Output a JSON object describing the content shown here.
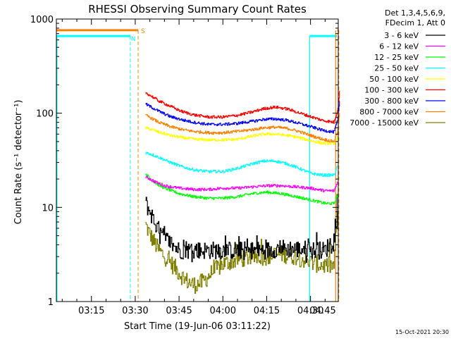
{
  "chart_data": {
    "type": "line",
    "title": "RHESSI Observing Summary Count Rates",
    "xlabel": "Start Time (19-Jun-06 03:11:22)",
    "ylabel": "Count Rate (s⁻¹ detector⁻¹)",
    "y_scale": "log",
    "ylim": [
      1,
      1000
    ],
    "xlim_minutes": [
      3.0,
      99.5
    ],
    "x_ticks": [
      {
        "label": "03:15",
        "minute": 15
      },
      {
        "label": "03:30",
        "minute": 30
      },
      {
        "label": "03:45",
        "minute": 45
      },
      {
        "label": "04:00",
        "minute": 60
      },
      {
        "label": "04:15",
        "minute": 75
      },
      {
        "label": "04:30",
        "minute": 90
      },
      {
        "label": "04:45",
        "minute": 105
      }
    ],
    "x_tick_labels_minutes": [
      15,
      30,
      45,
      60,
      75,
      90,
      105
    ],
    "y_ticks": [
      {
        "label": "1",
        "value": 1
      },
      {
        "label": "10",
        "value": 10
      },
      {
        "label": "100",
        "value": 100
      },
      {
        "label": "1000",
        "value": 1000
      }
    ],
    "legend_header": [
      "Det 1,3,4,5,6,9,",
      "FDecim 1, Att 0"
    ],
    "legend_position": "right",
    "series": [
      {
        "name": "3 - 6 keV",
        "color": "#000000",
        "x": [
          33.5,
          35,
          37,
          39,
          42,
          45,
          50,
          55,
          60,
          65,
          70,
          75,
          80,
          85,
          88.5,
          90,
          95,
          98.5,
          99.2
        ],
        "y": [
          11,
          9,
          6.5,
          5,
          4.2,
          3.5,
          3.5,
          3.5,
          3.5,
          3.5,
          3.5,
          3.5,
          3.7,
          3.6,
          3.6,
          3.5,
          3.5,
          5,
          12
        ]
      },
      {
        "name": "6 - 12 keV",
        "color": "#ff00ff",
        "x": [
          33.5,
          35,
          37,
          40,
          45,
          50,
          55,
          60,
          65,
          70,
          75,
          80,
          85,
          90,
          95,
          98,
          99.3
        ],
        "y": [
          21,
          20,
          18.5,
          17,
          16,
          15.5,
          15.5,
          16,
          16,
          16.5,
          17,
          17,
          16.5,
          16,
          15,
          15,
          19
        ]
      },
      {
        "name": "12 - 25 keV",
        "color": "#00ff00",
        "x": [
          33.5,
          35,
          37,
          40,
          45,
          50,
          55,
          60,
          65,
          70,
          75,
          80,
          85,
          90,
          95,
          98,
          99.3
        ],
        "y": [
          23,
          20,
          18,
          16,
          14,
          13,
          12.5,
          12.5,
          13,
          14,
          14.5,
          14,
          13,
          12,
          11,
          11,
          14
        ]
      },
      {
        "name": "25 - 50 keV",
        "color": "#00ffff",
        "x": [
          33.5,
          35,
          38,
          42,
          46,
          50,
          55,
          60,
          65,
          70,
          74,
          78,
          82,
          86,
          90,
          94,
          98,
          99.3
        ],
        "y": [
          38,
          37,
          34,
          30,
          27,
          25,
          24,
          24,
          26,
          29,
          31,
          31,
          29,
          26,
          23,
          22,
          22,
          28
        ]
      },
      {
        "name": "50 - 100 keV",
        "color": "#ffff00",
        "x": [
          33.5,
          35,
          38,
          42,
          46,
          50,
          55,
          60,
          65,
          70,
          74,
          78,
          82,
          86,
          90,
          94,
          98,
          99.3
        ],
        "y": [
          70,
          68,
          63,
          58,
          55,
          53,
          52,
          52,
          53,
          57,
          60,
          60,
          58,
          55,
          51,
          48,
          48,
          56
        ]
      },
      {
        "name": "100 - 300 keV",
        "color": "#ff0000",
        "x": [
          33.5,
          35,
          38,
          42,
          46,
          50,
          55,
          60,
          65,
          70,
          74,
          78,
          82,
          86,
          90,
          94,
          98,
          99.3,
          100
        ],
        "y": [
          165,
          155,
          135,
          118,
          104,
          96,
          91,
          91,
          95,
          103,
          112,
          116,
          111,
          101,
          92,
          84,
          80,
          110,
          180
        ]
      },
      {
        "name": "300 - 800 keV",
        "color": "#0000ff",
        "x": [
          33.5,
          35,
          38,
          42,
          46,
          50,
          55,
          60,
          65,
          70,
          74,
          78,
          82,
          86,
          90,
          94,
          98,
          99.3,
          100
        ],
        "y": [
          125,
          118,
          105,
          92,
          85,
          80,
          76,
          76,
          78,
          82,
          86,
          87,
          84,
          78,
          72,
          66,
          63,
          85,
          140
        ]
      },
      {
        "name": "800 - 7000 keV",
        "color": "#ff8000",
        "x": [
          33.5,
          35,
          38,
          42,
          46,
          50,
          55,
          60,
          65,
          70,
          74,
          78,
          82,
          86,
          90,
          94,
          98,
          99.3,
          100
        ],
        "y": [
          95,
          90,
          80,
          72,
          67,
          64,
          62,
          62,
          64,
          67,
          70,
          71,
          69,
          64,
          58,
          53,
          50,
          65,
          110
        ]
      },
      {
        "name": "7000 - 15000 keV",
        "color": "#808000",
        "x": [
          33.5,
          34.5,
          36,
          38,
          41,
          44,
          47,
          50,
          53,
          56,
          60,
          65,
          70,
          75,
          80,
          85,
          90,
          95,
          98,
          98.7,
          99.5
        ],
        "y": [
          6.5,
          5.5,
          4.5,
          3.5,
          2.8,
          2.2,
          1.7,
          1.5,
          1.6,
          2.0,
          2.5,
          2.8,
          3.0,
          3.0,
          3.2,
          3.0,
          2.6,
          2.4,
          2.4,
          5,
          10
        ]
      }
    ],
    "flags": [
      {
        "name": "S",
        "color": "#ff8000",
        "level": 760
      },
      {
        "name": "N",
        "color": "#00ffff",
        "level": 660
      }
    ],
    "flag_intervals_minutes": {
      "S": [
        [
          3.0,
          31.0
        ],
        [
          99.2,
          99.5
        ]
      ],
      "N": [
        [
          3.0,
          28.3
        ],
        [
          89.7,
          99.0
        ]
      ]
    },
    "orange_dashed_minutes": [
      31.0,
      99.7
    ],
    "cyan_dashed_minutes": [
      28.3
    ],
    "orange_solid_minutes": [
      98.6
    ],
    "cyan_solid_minutes": [
      3.2,
      89.7
    ],
    "footer_date": "15-Oct-2021 20:30",
    "grid": false
  }
}
